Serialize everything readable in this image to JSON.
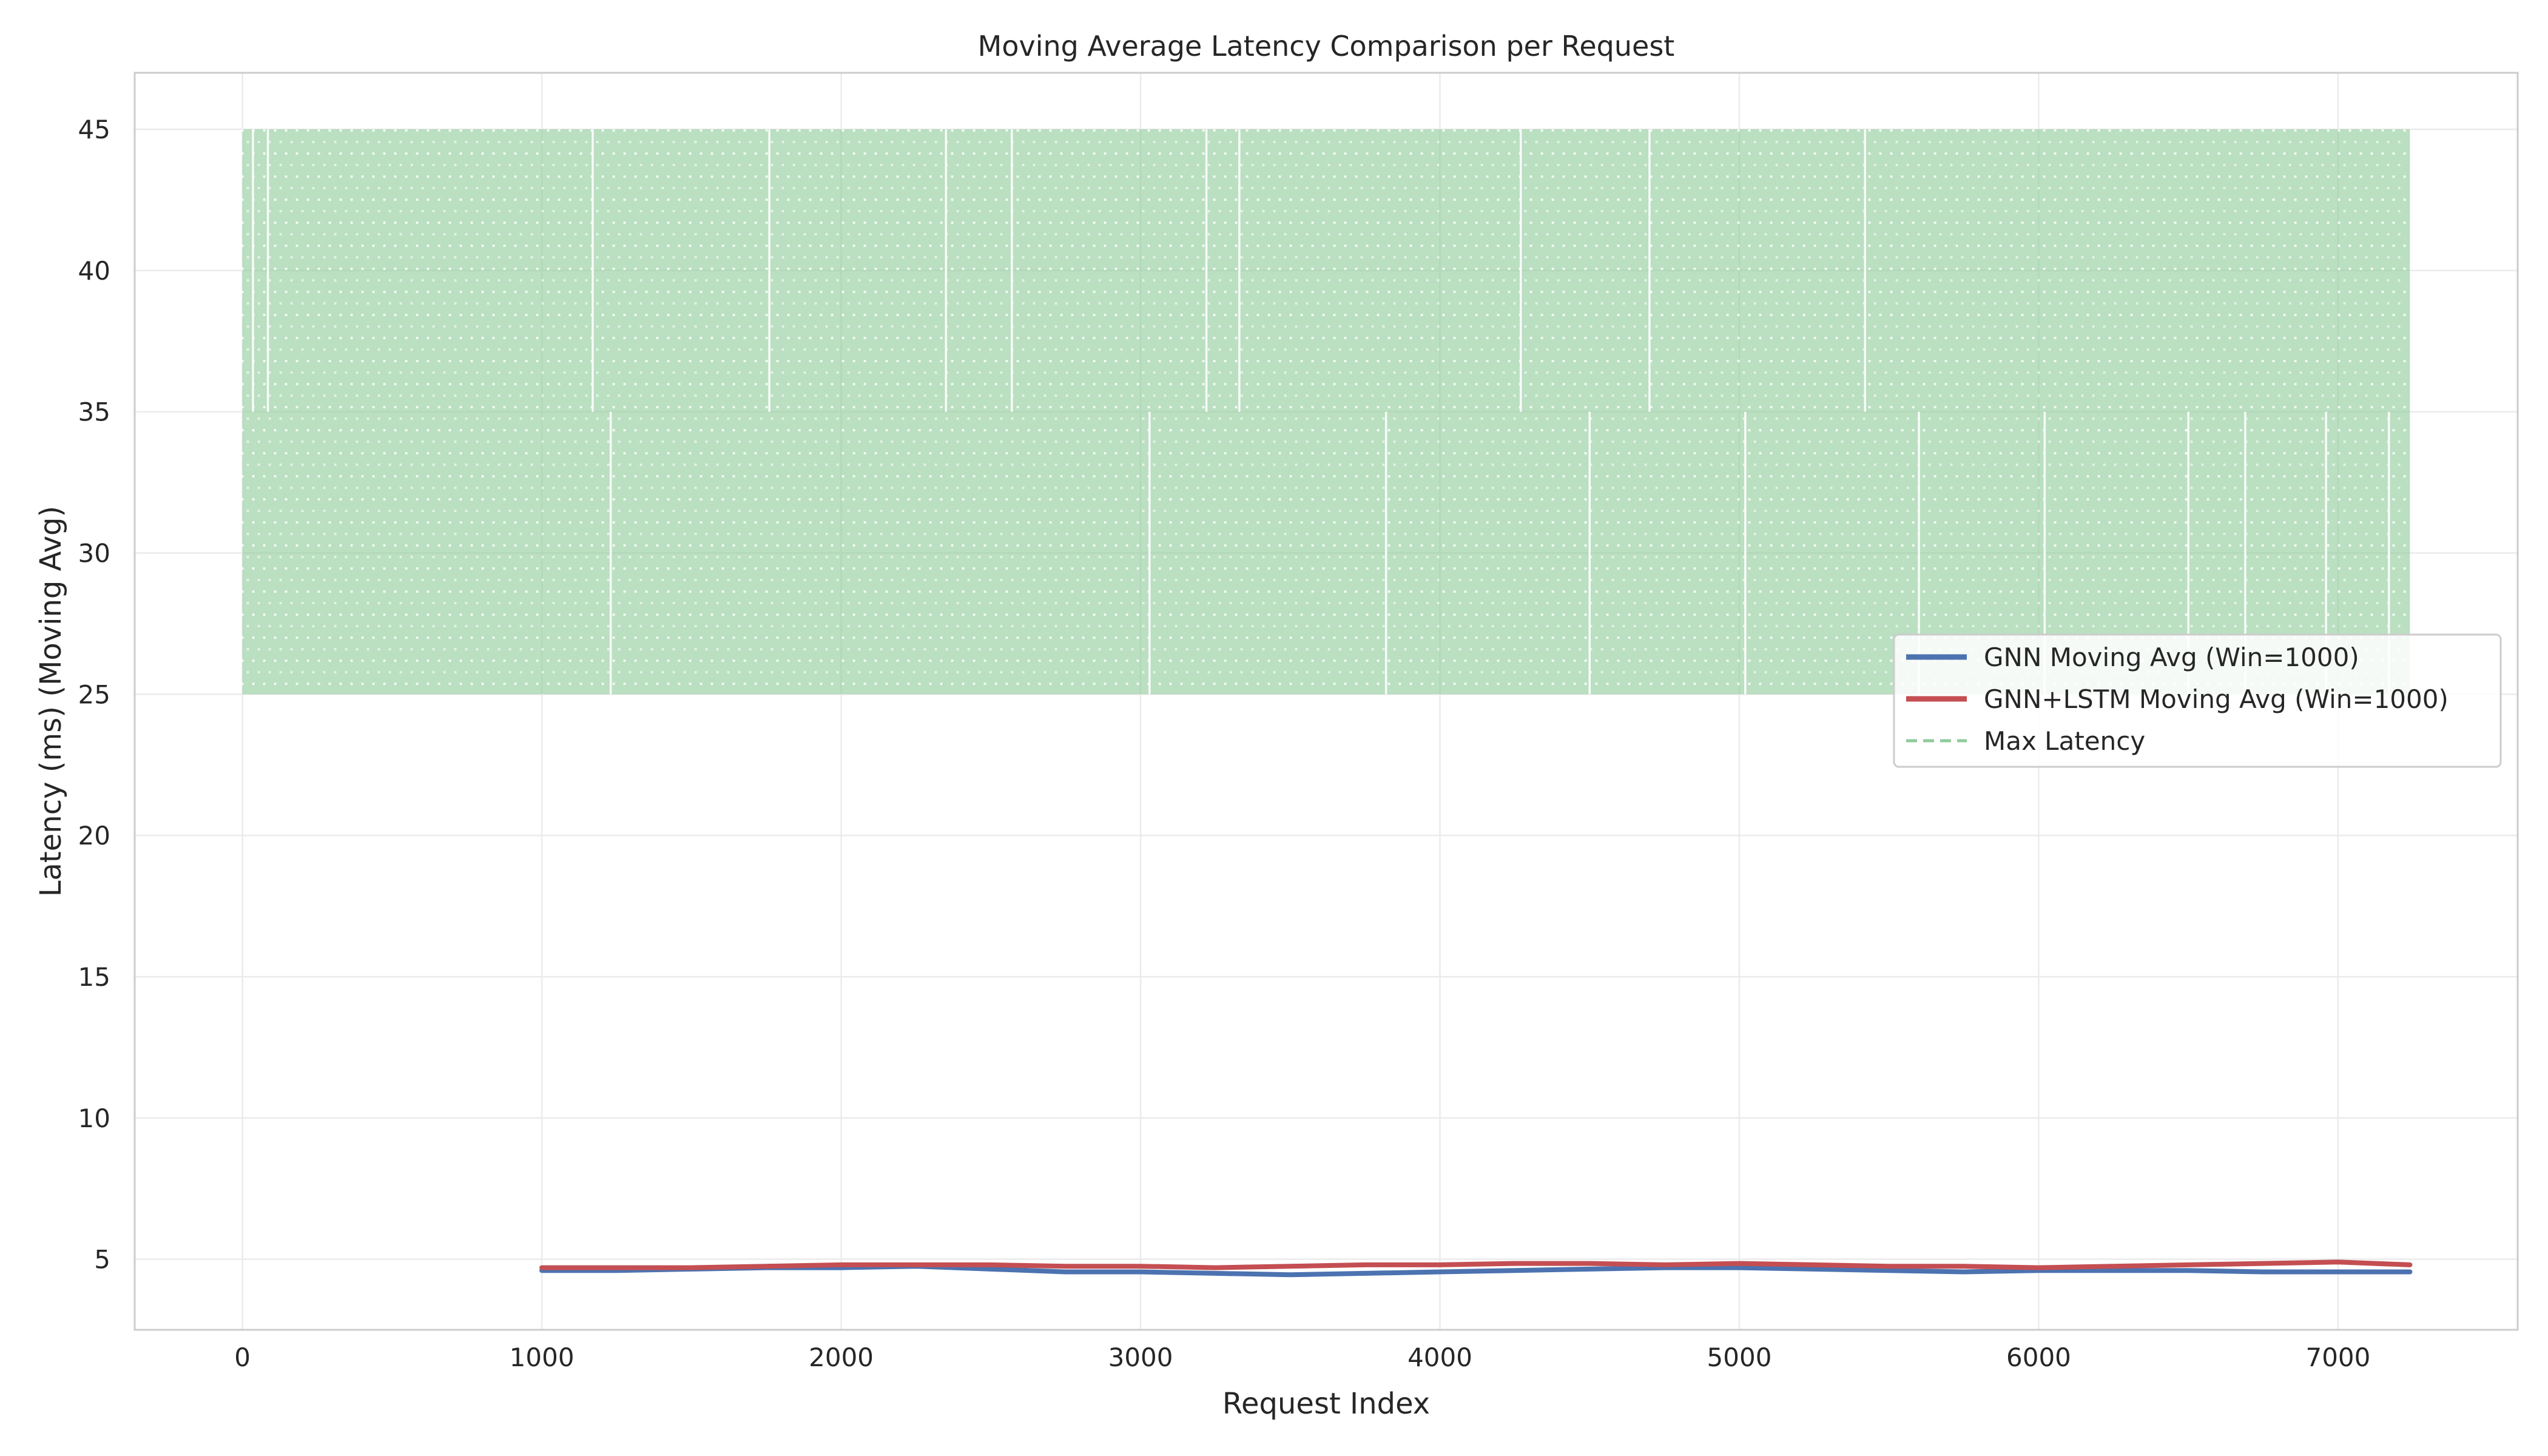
{
  "chart_data": {
    "type": "line",
    "title": "Moving Average Latency Comparison per Request",
    "xlabel": "Request Index",
    "ylabel": "Latency (ms) (Moving Avg)",
    "xlim": [
      -360,
      7600
    ],
    "ylim": [
      2.5,
      47.0
    ],
    "xticks": [
      0,
      1000,
      2000,
      3000,
      4000,
      5000,
      6000,
      7000
    ],
    "yticks": [
      5,
      10,
      15,
      20,
      25,
      30,
      35,
      40,
      45
    ],
    "grid": true,
    "legend_position": "center-right",
    "colors": {
      "gnn": "#4c72b0",
      "lstm": "#c44e52",
      "max": "#8fcb9b",
      "grid": "#ebebeb",
      "axis": "#cccccc"
    },
    "series": [
      {
        "name": "GNN Moving Avg (Win=1000)",
        "key": "gnn",
        "x": [
          1000,
          1250,
          1500,
          1750,
          2000,
          2250,
          2500,
          2750,
          3000,
          3250,
          3500,
          3750,
          4000,
          4250,
          4500,
          4750,
          5000,
          5250,
          5500,
          5750,
          6000,
          6250,
          6500,
          6750,
          7000,
          7240
        ],
        "y": [
          4.6,
          4.6,
          4.65,
          4.7,
          4.7,
          4.75,
          4.65,
          4.55,
          4.55,
          4.5,
          4.45,
          4.5,
          4.55,
          4.6,
          4.65,
          4.7,
          4.7,
          4.65,
          4.6,
          4.55,
          4.6,
          4.6,
          4.6,
          4.55,
          4.55,
          4.55
        ]
      },
      {
        "name": "GNN+LSTM Moving Avg (Win=1000)",
        "key": "lstm",
        "x": [
          1000,
          1250,
          1500,
          1750,
          2000,
          2250,
          2500,
          2750,
          3000,
          3250,
          3500,
          3750,
          4000,
          4250,
          4500,
          4750,
          5000,
          5250,
          5500,
          5750,
          6000,
          6250,
          6500,
          6750,
          7000,
          7240
        ],
        "y": [
          4.7,
          4.7,
          4.7,
          4.75,
          4.8,
          4.8,
          4.8,
          4.75,
          4.75,
          4.7,
          4.75,
          4.8,
          4.8,
          4.85,
          4.85,
          4.8,
          4.85,
          4.8,
          4.75,
          4.75,
          4.7,
          4.75,
          4.8,
          4.85,
          4.9,
          4.8
        ]
      },
      {
        "name": "Max Latency",
        "key": "max",
        "style": "dashed",
        "x_range": [
          0,
          7240
        ],
        "y_low": 25,
        "y_high": 45,
        "y_mid": 35,
        "upper_gaps": [
          35,
          85,
          1170,
          1760,
          2350,
          2570,
          3220,
          3330,
          4270,
          4700,
          5420
        ],
        "lower_gaps": [
          1230,
          3030,
          3820,
          4500,
          5020,
          5600,
          6020,
          6500,
          6690,
          6960,
          7170
        ]
      }
    ]
  }
}
